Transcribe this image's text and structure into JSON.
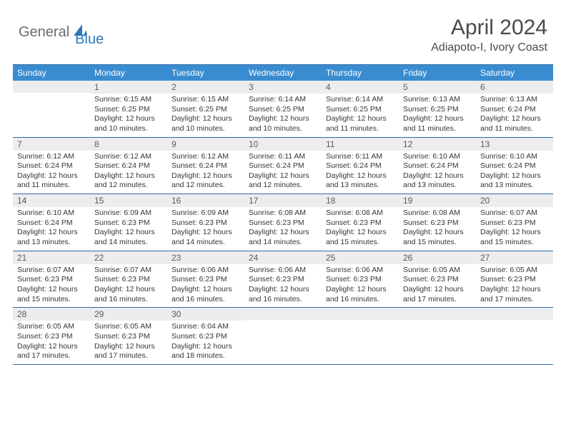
{
  "logo": {
    "text1": "General",
    "text2": "Blue"
  },
  "title": "April 2024",
  "location": "Adiapoto-I, Ivory Coast",
  "colors": {
    "header_bg": "#3a8cd0",
    "header_text": "#ffffff",
    "border": "#2c6aa6",
    "daynum_bg": "#ededed",
    "daynum_text": "#5a5a5a",
    "body_text": "#363636",
    "logo_gray": "#6c6c6c",
    "logo_blue": "#2f78bd"
  },
  "day_headers": [
    "Sunday",
    "Monday",
    "Tuesday",
    "Wednesday",
    "Thursday",
    "Friday",
    "Saturday"
  ],
  "weeks": [
    [
      {
        "num": "",
        "lines": []
      },
      {
        "num": "1",
        "lines": [
          "Sunrise: 6:15 AM",
          "Sunset: 6:25 PM",
          "Daylight: 12 hours",
          "and 10 minutes."
        ]
      },
      {
        "num": "2",
        "lines": [
          "Sunrise: 6:15 AM",
          "Sunset: 6:25 PM",
          "Daylight: 12 hours",
          "and 10 minutes."
        ]
      },
      {
        "num": "3",
        "lines": [
          "Sunrise: 6:14 AM",
          "Sunset: 6:25 PM",
          "Daylight: 12 hours",
          "and 10 minutes."
        ]
      },
      {
        "num": "4",
        "lines": [
          "Sunrise: 6:14 AM",
          "Sunset: 6:25 PM",
          "Daylight: 12 hours",
          "and 11 minutes."
        ]
      },
      {
        "num": "5",
        "lines": [
          "Sunrise: 6:13 AM",
          "Sunset: 6:25 PM",
          "Daylight: 12 hours",
          "and 11 minutes."
        ]
      },
      {
        "num": "6",
        "lines": [
          "Sunrise: 6:13 AM",
          "Sunset: 6:24 PM",
          "Daylight: 12 hours",
          "and 11 minutes."
        ]
      }
    ],
    [
      {
        "num": "7",
        "lines": [
          "Sunrise: 6:12 AM",
          "Sunset: 6:24 PM",
          "Daylight: 12 hours",
          "and 11 minutes."
        ]
      },
      {
        "num": "8",
        "lines": [
          "Sunrise: 6:12 AM",
          "Sunset: 6:24 PM",
          "Daylight: 12 hours",
          "and 12 minutes."
        ]
      },
      {
        "num": "9",
        "lines": [
          "Sunrise: 6:12 AM",
          "Sunset: 6:24 PM",
          "Daylight: 12 hours",
          "and 12 minutes."
        ]
      },
      {
        "num": "10",
        "lines": [
          "Sunrise: 6:11 AM",
          "Sunset: 6:24 PM",
          "Daylight: 12 hours",
          "and 12 minutes."
        ]
      },
      {
        "num": "11",
        "lines": [
          "Sunrise: 6:11 AM",
          "Sunset: 6:24 PM",
          "Daylight: 12 hours",
          "and 13 minutes."
        ]
      },
      {
        "num": "12",
        "lines": [
          "Sunrise: 6:10 AM",
          "Sunset: 6:24 PM",
          "Daylight: 12 hours",
          "and 13 minutes."
        ]
      },
      {
        "num": "13",
        "lines": [
          "Sunrise: 6:10 AM",
          "Sunset: 6:24 PM",
          "Daylight: 12 hours",
          "and 13 minutes."
        ]
      }
    ],
    [
      {
        "num": "14",
        "lines": [
          "Sunrise: 6:10 AM",
          "Sunset: 6:24 PM",
          "Daylight: 12 hours",
          "and 13 minutes."
        ]
      },
      {
        "num": "15",
        "lines": [
          "Sunrise: 6:09 AM",
          "Sunset: 6:23 PM",
          "Daylight: 12 hours",
          "and 14 minutes."
        ]
      },
      {
        "num": "16",
        "lines": [
          "Sunrise: 6:09 AM",
          "Sunset: 6:23 PM",
          "Daylight: 12 hours",
          "and 14 minutes."
        ]
      },
      {
        "num": "17",
        "lines": [
          "Sunrise: 6:08 AM",
          "Sunset: 6:23 PM",
          "Daylight: 12 hours",
          "and 14 minutes."
        ]
      },
      {
        "num": "18",
        "lines": [
          "Sunrise: 6:08 AM",
          "Sunset: 6:23 PM",
          "Daylight: 12 hours",
          "and 15 minutes."
        ]
      },
      {
        "num": "19",
        "lines": [
          "Sunrise: 6:08 AM",
          "Sunset: 6:23 PM",
          "Daylight: 12 hours",
          "and 15 minutes."
        ]
      },
      {
        "num": "20",
        "lines": [
          "Sunrise: 6:07 AM",
          "Sunset: 6:23 PM",
          "Daylight: 12 hours",
          "and 15 minutes."
        ]
      }
    ],
    [
      {
        "num": "21",
        "lines": [
          "Sunrise: 6:07 AM",
          "Sunset: 6:23 PM",
          "Daylight: 12 hours",
          "and 15 minutes."
        ]
      },
      {
        "num": "22",
        "lines": [
          "Sunrise: 6:07 AM",
          "Sunset: 6:23 PM",
          "Daylight: 12 hours",
          "and 16 minutes."
        ]
      },
      {
        "num": "23",
        "lines": [
          "Sunrise: 6:06 AM",
          "Sunset: 6:23 PM",
          "Daylight: 12 hours",
          "and 16 minutes."
        ]
      },
      {
        "num": "24",
        "lines": [
          "Sunrise: 6:06 AM",
          "Sunset: 6:23 PM",
          "Daylight: 12 hours",
          "and 16 minutes."
        ]
      },
      {
        "num": "25",
        "lines": [
          "Sunrise: 6:06 AM",
          "Sunset: 6:23 PM",
          "Daylight: 12 hours",
          "and 16 minutes."
        ]
      },
      {
        "num": "26",
        "lines": [
          "Sunrise: 6:05 AM",
          "Sunset: 6:23 PM",
          "Daylight: 12 hours",
          "and 17 minutes."
        ]
      },
      {
        "num": "27",
        "lines": [
          "Sunrise: 6:05 AM",
          "Sunset: 6:23 PM",
          "Daylight: 12 hours",
          "and 17 minutes."
        ]
      }
    ],
    [
      {
        "num": "28",
        "lines": [
          "Sunrise: 6:05 AM",
          "Sunset: 6:23 PM",
          "Daylight: 12 hours",
          "and 17 minutes."
        ]
      },
      {
        "num": "29",
        "lines": [
          "Sunrise: 6:05 AM",
          "Sunset: 6:23 PM",
          "Daylight: 12 hours",
          "and 17 minutes."
        ]
      },
      {
        "num": "30",
        "lines": [
          "Sunrise: 6:04 AM",
          "Sunset: 6:23 PM",
          "Daylight: 12 hours",
          "and 18 minutes."
        ]
      },
      {
        "num": "",
        "lines": []
      },
      {
        "num": "",
        "lines": []
      },
      {
        "num": "",
        "lines": []
      },
      {
        "num": "",
        "lines": []
      }
    ]
  ]
}
